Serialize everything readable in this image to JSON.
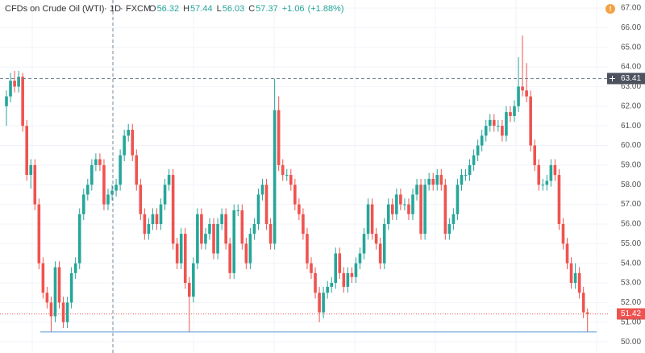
{
  "chart_data": {
    "type": "candlestick",
    "title": "CFDs on Crude Oil (WTI)",
    "interval": "1D",
    "source": "FXCM",
    "ohlc_labels": [
      "O",
      "H",
      "L",
      "C"
    ],
    "ohlc_values": [
      56.32,
      57.44,
      56.03,
      57.37
    ],
    "change": {
      "value": 1.06,
      "label": "+1.06"
    },
    "change_pct": {
      "value": 1.88,
      "label": "(+1.88%)"
    },
    "alert_icon": "!",
    "up_color": "#26a69a",
    "down_color": "#ef5350",
    "support_line": {
      "value": 50.5,
      "color": "#5b9bd5"
    },
    "crosshair_price": 63.41,
    "ylim": [
      49.43,
      67.41
    ],
    "yticks": [
      {
        "value": 50,
        "label": "50.00"
      },
      {
        "value": 51,
        "label": "51.00"
      },
      {
        "value": 52,
        "label": "52.00"
      },
      {
        "value": 53,
        "label": "53.00"
      },
      {
        "value": 54,
        "label": "54.00"
      },
      {
        "value": 55,
        "label": "55.00"
      },
      {
        "value": 56,
        "label": "56.00"
      },
      {
        "value": 57,
        "label": "57.00"
      },
      {
        "value": 58,
        "label": "58.00"
      },
      {
        "value": 59,
        "label": "59.00"
      },
      {
        "value": 60,
        "label": "60.00"
      },
      {
        "value": 61,
        "label": "61.00"
      },
      {
        "value": 62,
        "label": "62.00"
      },
      {
        "value": 63,
        "label": "63.00"
      },
      {
        "value": 64,
        "label": "64.00"
      },
      {
        "value": 65,
        "label": "65.00"
      },
      {
        "value": 66,
        "label": "66.00"
      },
      {
        "value": 67,
        "label": "67.00"
      }
    ],
    "grid": true,
    "candles": [
      [
        62.0,
        62.8,
        61.0,
        62.5
      ],
      [
        62.5,
        63.7,
        62.2,
        63.3
      ],
      [
        63.3,
        63.8,
        62.7,
        63.0
      ],
      [
        63.0,
        63.8,
        62.7,
        63.5
      ],
      [
        63.5,
        63.7,
        60.7,
        61.0
      ],
      [
        61.0,
        61.3,
        58.2,
        58.5
      ],
      [
        58.5,
        59.3,
        57.8,
        59.0
      ],
      [
        59.0,
        59.3,
        56.7,
        57.0
      ],
      [
        57.0,
        57.3,
        53.7,
        54.0
      ],
      [
        54.0,
        54.3,
        52.2,
        52.5
      ],
      [
        52.5,
        52.8,
        51.7,
        52.0
      ],
      [
        52.0,
        52.3,
        50.5,
        51.3
      ],
      [
        51.3,
        54.1,
        51.0,
        53.8
      ],
      [
        53.8,
        54.1,
        51.7,
        52.0
      ],
      [
        52.0,
        52.3,
        50.7,
        51.0
      ],
      [
        51.0,
        52.3,
        50.7,
        52.0
      ],
      [
        52.0,
        53.8,
        51.7,
        53.5
      ],
      [
        53.5,
        54.3,
        53.2,
        54.0
      ],
      [
        54.0,
        56.8,
        53.7,
        56.5
      ],
      [
        56.5,
        57.8,
        56.2,
        57.5
      ],
      [
        57.5,
        58.3,
        57.2,
        58.0
      ],
      [
        58.0,
        59.3,
        57.7,
        59.0
      ],
      [
        59.0,
        59.6,
        58.7,
        59.3
      ],
      [
        59.3,
        59.6,
        58.7,
        59.0
      ],
      [
        59.0,
        59.3,
        56.7,
        57.0
      ],
      [
        57.0,
        57.8,
        56.7,
        57.5
      ],
      [
        57.5,
        58.0,
        57.2,
        57.7
      ],
      [
        57.7,
        58.3,
        57.4,
        58.0
      ],
      [
        58.0,
        59.8,
        57.7,
        59.5
      ],
      [
        59.5,
        60.8,
        59.2,
        60.5
      ],
      [
        60.5,
        61.1,
        60.2,
        60.8
      ],
      [
        60.8,
        61.1,
        59.2,
        59.5
      ],
      [
        59.5,
        59.8,
        57.7,
        58.0
      ],
      [
        58.0,
        58.3,
        56.2,
        56.5
      ],
      [
        56.5,
        56.8,
        55.2,
        55.5
      ],
      [
        55.5,
        56.3,
        55.2,
        56.0
      ],
      [
        56.0,
        56.8,
        55.7,
        56.5
      ],
      [
        56.5,
        56.8,
        55.7,
        56.0
      ],
      [
        56.0,
        57.3,
        55.7,
        57.0
      ],
      [
        57.0,
        58.3,
        56.7,
        58.0
      ],
      [
        58.0,
        58.8,
        57.7,
        58.5
      ],
      [
        58.5,
        58.8,
        54.7,
        55.0
      ],
      [
        55.0,
        55.3,
        53.7,
        54.0
      ],
      [
        54.0,
        55.8,
        53.7,
        55.5
      ],
      [
        55.5,
        55.8,
        52.7,
        53.0
      ],
      [
        53.0,
        53.3,
        50.5,
        52.3
      ],
      [
        52.3,
        54.3,
        52.0,
        54.0
      ],
      [
        54.0,
        56.8,
        53.7,
        56.5
      ],
      [
        56.5,
        56.8,
        54.7,
        55.0
      ],
      [
        55.0,
        55.8,
        54.7,
        55.5
      ],
      [
        55.5,
        56.3,
        55.2,
        56.0
      ],
      [
        56.0,
        56.3,
        54.2,
        54.5
      ],
      [
        54.5,
        56.3,
        54.2,
        56.0
      ],
      [
        56.0,
        56.8,
        55.7,
        56.5
      ],
      [
        56.5,
        56.8,
        54.7,
        55.0
      ],
      [
        55.0,
        55.3,
        53.2,
        53.5
      ],
      [
        53.5,
        57.0,
        53.2,
        56.7
      ],
      [
        56.7,
        57.0,
        56.4,
        56.7
      ],
      [
        56.7,
        57.0,
        54.7,
        55.0
      ],
      [
        55.0,
        55.3,
        53.7,
        54.0
      ],
      [
        54.0,
        55.8,
        53.7,
        55.5
      ],
      [
        55.5,
        56.3,
        55.2,
        56.0
      ],
      [
        56.0,
        57.8,
        55.7,
        57.5
      ],
      [
        57.5,
        58.3,
        57.2,
        58.0
      ],
      [
        58.0,
        58.3,
        55.7,
        56.0
      ],
      [
        56.0,
        56.3,
        54.7,
        55.0
      ],
      [
        55.0,
        63.4,
        54.7,
        61.8
      ],
      [
        61.8,
        62.5,
        58.7,
        59.0
      ],
      [
        59.0,
        59.3,
        58.2,
        58.5
      ],
      [
        58.5,
        58.8,
        58.2,
        58.5
      ],
      [
        58.5,
        58.8,
        57.7,
        58.0
      ],
      [
        58.0,
        58.3,
        56.7,
        57.0
      ],
      [
        57.0,
        57.3,
        56.2,
        56.5
      ],
      [
        56.5,
        56.8,
        55.2,
        55.5
      ],
      [
        55.5,
        55.8,
        53.7,
        54.0
      ],
      [
        54.0,
        54.3,
        53.2,
        53.5
      ],
      [
        53.5,
        53.8,
        52.2,
        52.5
      ],
      [
        52.5,
        52.8,
        51.0,
        51.5
      ],
      [
        51.5,
        52.8,
        51.2,
        52.5
      ],
      [
        52.5,
        53.1,
        52.2,
        52.8
      ],
      [
        52.8,
        53.3,
        52.5,
        53.0
      ],
      [
        53.0,
        54.8,
        52.7,
        54.5
      ],
      [
        54.5,
        54.8,
        53.2,
        53.5
      ],
      [
        53.5,
        53.8,
        52.5,
        52.8
      ],
      [
        52.8,
        53.8,
        52.5,
        53.5
      ],
      [
        53.5,
        53.8,
        53.0,
        53.3
      ],
      [
        53.3,
        54.3,
        53.0,
        54.0
      ],
      [
        54.0,
        54.8,
        53.7,
        54.5
      ],
      [
        54.5,
        55.8,
        54.2,
        55.5
      ],
      [
        55.5,
        57.3,
        55.2,
        57.0
      ],
      [
        57.0,
        57.3,
        55.2,
        55.5
      ],
      [
        55.5,
        55.8,
        54.7,
        55.0
      ],
      [
        55.0,
        55.3,
        53.7,
        54.0
      ],
      [
        54.0,
        56.3,
        53.7,
        56.0
      ],
      [
        56.0,
        57.3,
        55.7,
        57.0
      ],
      [
        57.0,
        57.3,
        56.2,
        56.5
      ],
      [
        56.5,
        57.8,
        56.2,
        57.5
      ],
      [
        57.5,
        57.8,
        56.7,
        57.0
      ],
      [
        57.0,
        57.3,
        56.7,
        57.0
      ],
      [
        57.0,
        57.3,
        56.2,
        56.5
      ],
      [
        56.5,
        57.8,
        56.2,
        57.5
      ],
      [
        57.5,
        58.3,
        57.2,
        58.0
      ],
      [
        58.0,
        58.3,
        55.2,
        55.5
      ],
      [
        55.5,
        58.3,
        55.2,
        58.0
      ],
      [
        58.0,
        58.6,
        57.7,
        58.3
      ],
      [
        58.3,
        58.6,
        57.7,
        58.0
      ],
      [
        58.0,
        58.8,
        57.7,
        58.5
      ],
      [
        58.5,
        58.8,
        57.7,
        58.0
      ],
      [
        58.0,
        58.3,
        55.2,
        55.5
      ],
      [
        55.5,
        56.3,
        55.2,
        56.0
      ],
      [
        56.0,
        56.8,
        55.7,
        56.5
      ],
      [
        56.5,
        58.3,
        56.2,
        58.0
      ],
      [
        58.0,
        58.8,
        57.7,
        58.5
      ],
      [
        58.5,
        58.8,
        58.2,
        58.5
      ],
      [
        58.5,
        59.3,
        58.2,
        59.0
      ],
      [
        59.0,
        59.8,
        58.7,
        59.5
      ],
      [
        59.5,
        60.3,
        59.2,
        60.0
      ],
      [
        60.0,
        60.8,
        59.7,
        60.5
      ],
      [
        60.5,
        61.3,
        60.2,
        61.0
      ],
      [
        61.0,
        61.6,
        60.7,
        61.3
      ],
      [
        61.3,
        61.6,
        60.7,
        61.0
      ],
      [
        61.0,
        61.3,
        60.7,
        61.0
      ],
      [
        61.0,
        61.3,
        60.2,
        60.5
      ],
      [
        60.5,
        62.0,
        60.2,
        61.7
      ],
      [
        61.7,
        62.0,
        61.2,
        61.5
      ],
      [
        61.5,
        62.3,
        61.2,
        62.0
      ],
      [
        62.0,
        64.5,
        61.7,
        63.0
      ],
      [
        63.0,
        65.6,
        62.5,
        62.8
      ],
      [
        62.8,
        64.2,
        62.2,
        62.5
      ],
      [
        62.5,
        62.8,
        59.7,
        60.0
      ],
      [
        60.0,
        60.3,
        58.7,
        59.0
      ],
      [
        59.0,
        59.3,
        57.7,
        58.0
      ],
      [
        58.0,
        58.3,
        57.7,
        58.0
      ],
      [
        58.0,
        58.5,
        57.7,
        58.2
      ],
      [
        58.2,
        59.3,
        57.9,
        59.0
      ],
      [
        59.0,
        59.3,
        58.2,
        58.5
      ],
      [
        58.5,
        58.8,
        55.7,
        56.0
      ],
      [
        56.0,
        56.3,
        54.7,
        55.0
      ],
      [
        55.0,
        55.3,
        53.7,
        54.0
      ],
      [
        54.0,
        54.3,
        52.7,
        53.0
      ],
      [
        53.0,
        54.0,
        52.7,
        53.5
      ],
      [
        53.5,
        53.8,
        52.2,
        52.5
      ],
      [
        52.5,
        52.8,
        51.2,
        51.5
      ],
      [
        51.5,
        51.7,
        50.5,
        51.42
      ]
    ]
  }
}
